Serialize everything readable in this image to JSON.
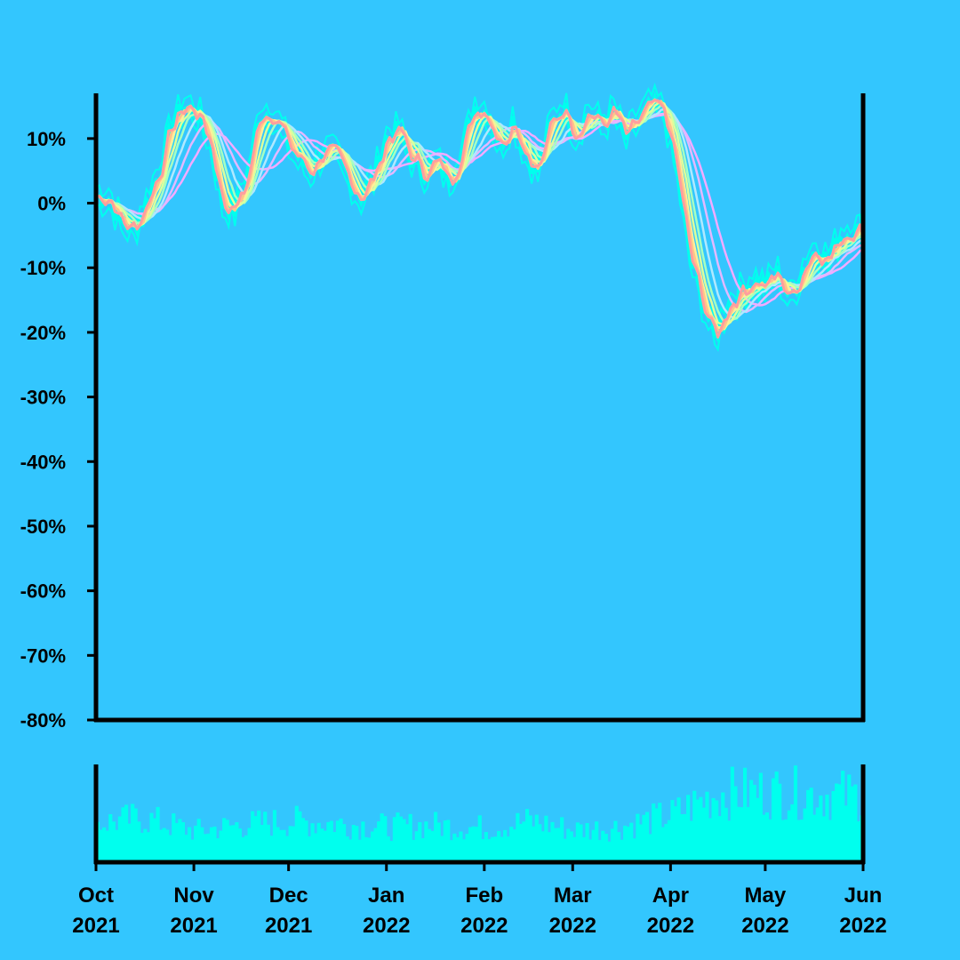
{
  "colors": {
    "background": "#33c6fe",
    "price": "#00ffee",
    "volume": "#00ffee",
    "axis": "#000000"
  },
  "chart_data": {
    "type": "line",
    "title": "",
    "xlabel": "",
    "ylabel": "",
    "x_range": [
      "2021-10-01",
      "2022-06-01"
    ],
    "ylim": [
      -80,
      17
    ],
    "grid": false,
    "legend": "none",
    "y_ticks": [
      10,
      0,
      -10,
      -20,
      -30,
      -40,
      -50,
      -60,
      -70,
      -80
    ],
    "y_tick_labels": [
      "10%",
      "0%",
      "-10%",
      "-20%",
      "-30%",
      "-40%",
      "-50%",
      "-60%",
      "-70%",
      "-80%"
    ],
    "x_ticks": [
      "2021-10-01",
      "2021-11-01",
      "2021-12-01",
      "2022-01-01",
      "2022-02-01",
      "2022-03-01",
      "2022-04-01",
      "2022-05-01",
      "2022-06-01"
    ],
    "x_tick_labels": [
      [
        "Oct",
        "2021"
      ],
      [
        "Nov",
        "2021"
      ],
      [
        "Dec",
        "2021"
      ],
      [
        "Jan",
        "2022"
      ],
      [
        "Feb",
        "2022"
      ],
      [
        "Mar",
        "2022"
      ],
      [
        "Apr",
        "2022"
      ],
      [
        "May",
        "2022"
      ],
      [
        "Jun",
        "2022"
      ]
    ],
    "price_series": {
      "color": "#00ffee",
      "points": [
        [
          "2021-10-01",
          1
        ],
        [
          "2021-10-05",
          1
        ],
        [
          "2021-10-09",
          -3
        ],
        [
          "2021-10-13",
          -4
        ],
        [
          "2021-10-17",
          0
        ],
        [
          "2021-10-21",
          5
        ],
        [
          "2021-10-25",
          12
        ],
        [
          "2021-10-29",
          15
        ],
        [
          "2021-11-02",
          14
        ],
        [
          "2021-11-06",
          10
        ],
        [
          "2021-11-10",
          0
        ],
        [
          "2021-11-14",
          -1
        ],
        [
          "2021-11-18",
          4
        ],
        [
          "2021-11-22",
          14
        ],
        [
          "2021-11-26",
          14
        ],
        [
          "2021-11-30",
          10
        ],
        [
          "2021-12-04",
          7
        ],
        [
          "2021-12-08",
          5
        ],
        [
          "2021-12-12",
          8
        ],
        [
          "2021-12-16",
          7
        ],
        [
          "2021-12-20",
          4
        ],
        [
          "2021-12-24",
          1
        ],
        [
          "2021-12-28",
          4
        ],
        [
          "2022-01-01",
          10
        ],
        [
          "2022-01-05",
          11
        ],
        [
          "2022-01-09",
          7
        ],
        [
          "2022-01-13",
          5
        ],
        [
          "2022-01-17",
          6
        ],
        [
          "2022-01-21",
          4
        ],
        [
          "2022-01-25",
          8
        ],
        [
          "2022-01-29",
          15
        ],
        [
          "2022-02-02",
          14
        ],
        [
          "2022-02-06",
          9
        ],
        [
          "2022-02-10",
          13
        ],
        [
          "2022-02-14",
          8
        ],
        [
          "2022-02-18",
          5
        ],
        [
          "2022-02-22",
          12
        ],
        [
          "2022-02-26",
          15
        ],
        [
          "2022-03-02",
          11
        ],
        [
          "2022-03-06",
          14
        ],
        [
          "2022-03-10",
          12
        ],
        [
          "2022-03-14",
          14
        ],
        [
          "2022-03-18",
          10
        ],
        [
          "2022-03-22",
          13
        ],
        [
          "2022-03-26",
          15
        ],
        [
          "2022-03-30",
          14
        ],
        [
          "2022-04-03",
          5
        ],
        [
          "2022-04-07",
          -8
        ],
        [
          "2022-04-11",
          -15
        ],
        [
          "2022-04-15",
          -21
        ],
        [
          "2022-04-19",
          -16
        ],
        [
          "2022-04-23",
          -14
        ],
        [
          "2022-04-27",
          -12
        ],
        [
          "2022-05-01",
          -13
        ],
        [
          "2022-05-05",
          -11
        ],
        [
          "2022-05-09",
          -15
        ],
        [
          "2022-05-13",
          -10
        ],
        [
          "2022-05-17",
          -7
        ],
        [
          "2022-05-21",
          -9
        ],
        [
          "2022-05-25",
          -5
        ],
        [
          "2022-05-29",
          -4
        ],
        [
          "2022-06-01",
          -5
        ]
      ]
    },
    "moving_averages": [
      {
        "color": "#ff9e9e",
        "width": 3.0,
        "window": 2
      },
      {
        "color": "#ffc48a",
        "width": 3.0,
        "window": 3
      },
      {
        "color": "#ffee99",
        "width": 3.0,
        "window": 4
      },
      {
        "color": "#dcff9c",
        "width": 2.5,
        "window": 6
      },
      {
        "color": "#a6ffc2",
        "width": 2.5,
        "window": 8
      },
      {
        "color": "#b0e8ff",
        "width": 2.5,
        "window": 11
      },
      {
        "color": "#e2b8ff",
        "width": 2.5,
        "window": 15
      },
      {
        "color": "#f2aaff",
        "width": 2.5,
        "window": 20
      }
    ],
    "volume": {
      "color": "#00ffee",
      "points": [
        [
          "2021-10-01",
          0.4
        ],
        [
          "2021-10-15",
          0.45
        ],
        [
          "2021-11-01",
          0.32
        ],
        [
          "2021-11-15",
          0.38
        ],
        [
          "2021-12-01",
          0.42
        ],
        [
          "2021-12-15",
          0.4
        ],
        [
          "2022-01-01",
          0.36
        ],
        [
          "2022-01-15",
          0.38
        ],
        [
          "2022-02-01",
          0.35
        ],
        [
          "2022-02-15",
          0.42
        ],
        [
          "2022-03-01",
          0.33
        ],
        [
          "2022-03-15",
          0.36
        ],
        [
          "2022-04-01",
          0.48
        ],
        [
          "2022-04-15",
          0.7
        ],
        [
          "2022-05-01",
          0.72
        ],
        [
          "2022-05-15",
          0.7
        ],
        [
          "2022-06-01",
          0.68
        ]
      ]
    }
  }
}
